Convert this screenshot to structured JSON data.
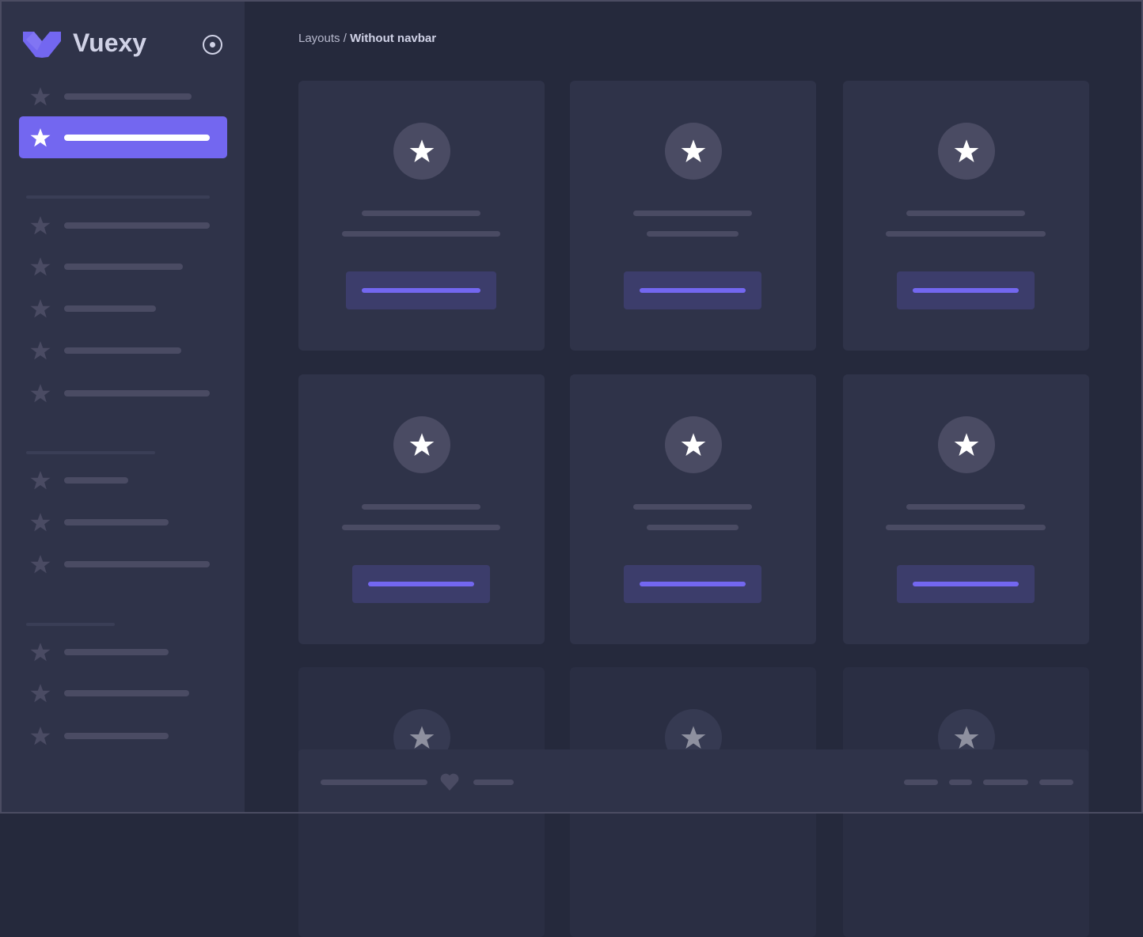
{
  "sidebar": {
    "brand": "Vuexy",
    "logo_color": "#7367f0",
    "active_color": "#7367f0"
  },
  "breadcrumb": {
    "parent": "Layouts",
    "separator": " / ",
    "current": "Without navbar"
  },
  "icons": {
    "menu_item": "star-icon",
    "card": "star-icon",
    "footer": "heart-icon",
    "pin": "radio-circle-icon"
  }
}
